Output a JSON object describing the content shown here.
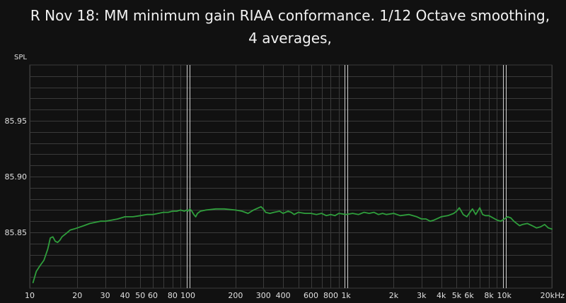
{
  "chart_data": {
    "type": "line",
    "title": "R Nov 18: MM minimum gain RIAA conformance. 1/12 Octave smoothing, 4 averages,",
    "ylabel": "SPL",
    "xlabel": "",
    "x_scale": "log",
    "xlim": [
      10,
      20000
    ],
    "ylim": [
      85.8,
      86.0
    ],
    "grid": true,
    "x_ticks": [
      {
        "value": 10,
        "label": "10"
      },
      {
        "value": 20,
        "label": "20"
      },
      {
        "value": 30,
        "label": "30"
      },
      {
        "value": 40,
        "label": "40"
      },
      {
        "value": 50,
        "label": "50"
      },
      {
        "value": 60,
        "label": "60"
      },
      {
        "value": 80,
        "label": "80"
      },
      {
        "value": 100,
        "label": "100"
      },
      {
        "value": 200,
        "label": "200"
      },
      {
        "value": 300,
        "label": "300"
      },
      {
        "value": 400,
        "label": "400"
      },
      {
        "value": 600,
        "label": "600"
      },
      {
        "value": 800,
        "label": "800"
      },
      {
        "value": 1000,
        "label": "1k"
      },
      {
        "value": 2000,
        "label": "2k"
      },
      {
        "value": 3000,
        "label": "3k"
      },
      {
        "value": 4000,
        "label": "4k"
      },
      {
        "value": 5000,
        "label": "5k"
      },
      {
        "value": 6000,
        "label": "6k"
      },
      {
        "value": 8000,
        "label": "8k"
      },
      {
        "value": 10000,
        "label": "10k"
      },
      {
        "value": 20000,
        "label": "20kHz"
      }
    ],
    "y_ticks": [
      {
        "value": 85.85,
        "label": "85.85"
      },
      {
        "value": 85.9,
        "label": "85.90"
      },
      {
        "value": 85.95,
        "label": "85.95"
      }
    ],
    "colors": {
      "background": "#111111",
      "grid": "#3a3a3a",
      "grid_decade": "#cfcfcf",
      "line": "#2f9e3c"
    },
    "series": [
      {
        "x": [
          10.5,
          11,
          11.6,
          12.3,
          13,
          13.5,
          14,
          14.5,
          15,
          15.5,
          16,
          17,
          18,
          19,
          20,
          22,
          24,
          26,
          28,
          30,
          33,
          36,
          40,
          45,
          50,
          55,
          60,
          65,
          70,
          75,
          80,
          85,
          90,
          95,
          98,
          100,
          103,
          106,
          109,
          112,
          115,
          120,
          130,
          150,
          170,
          200,
          220,
          240,
          260,
          280,
          290,
          300,
          310,
          330,
          350,
          380,
          400,
          430,
          450,
          470,
          500,
          550,
          600,
          650,
          700,
          750,
          800,
          850,
          900,
          1000,
          1100,
          1200,
          1300,
          1400,
          1500,
          1600,
          1700,
          1800,
          2000,
          2200,
          2500,
          2800,
          3000,
          3200,
          3400,
          3600,
          4000,
          4400,
          4800,
          5000,
          5200,
          5500,
          5800,
          6000,
          6300,
          6600,
          7000,
          7300,
          7600,
          8000,
          8500,
          9000,
          9500,
          10000,
          10500,
          11000,
          11500,
          12000,
          12500,
          13000,
          14000,
          15000,
          16000,
          17000,
          18000,
          19000,
          20000
        ],
        "y": [
          85.805,
          85.815,
          85.82,
          85.825,
          85.835,
          85.845,
          85.846,
          85.842,
          85.841,
          85.843,
          85.846,
          85.849,
          85.852,
          85.853,
          85.854,
          85.856,
          85.858,
          85.859,
          85.86,
          85.86,
          85.861,
          85.862,
          85.864,
          85.864,
          85.865,
          85.866,
          85.866,
          85.867,
          85.868,
          85.868,
          85.869,
          85.869,
          85.87,
          85.869,
          85.87,
          85.869,
          85.871,
          85.869,
          85.866,
          85.864,
          85.867,
          85.869,
          85.87,
          85.871,
          85.871,
          85.87,
          85.869,
          85.867,
          85.87,
          85.872,
          85.873,
          85.871,
          85.868,
          85.867,
          85.868,
          85.869,
          85.867,
          85.869,
          85.868,
          85.866,
          85.868,
          85.867,
          85.867,
          85.866,
          85.867,
          85.865,
          85.866,
          85.865,
          85.867,
          85.866,
          85.867,
          85.866,
          85.868,
          85.867,
          85.868,
          85.866,
          85.867,
          85.866,
          85.867,
          85.865,
          85.866,
          85.864,
          85.862,
          85.862,
          85.86,
          85.861,
          85.864,
          85.865,
          85.867,
          85.869,
          85.872,
          85.866,
          85.864,
          85.867,
          85.871,
          85.866,
          85.872,
          85.866,
          85.865,
          85.865,
          85.863,
          85.861,
          85.86,
          85.862,
          85.864,
          85.863,
          85.86,
          85.858,
          85.856,
          85.857,
          85.858,
          85.856,
          85.854,
          85.855,
          85.857,
          85.854,
          85.853
        ]
      }
    ]
  }
}
